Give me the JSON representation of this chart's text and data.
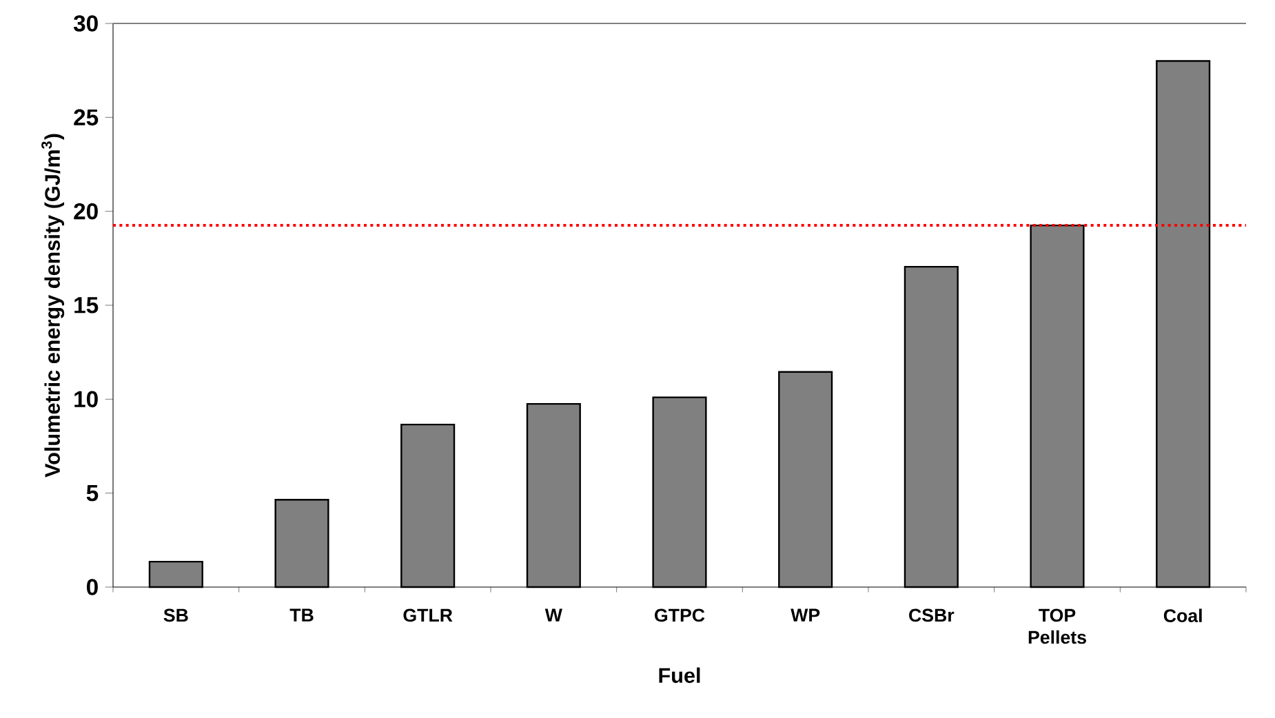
{
  "chart_data": {
    "type": "bar",
    "xlabel": "Fuel",
    "ylabel": "Volumetric energy density (GJ/m$^{3}$)",
    "categories": [
      "SB",
      "TB",
      "GTLR",
      "W",
      "GTPC",
      "WP",
      "CSBr",
      "TOP Pellets",
      "Coal"
    ],
    "values": [
      1.35,
      4.65,
      8.65,
      9.75,
      10.1,
      11.45,
      17.05,
      19.25,
      28.0
    ],
    "color": "#808080",
    "ylim": [
      0,
      30
    ],
    "yticks": [
      0,
      5,
      10,
      15,
      20,
      25,
      30
    ],
    "ref_lines": [
      {
        "axis": "y",
        "value": 19.25,
        "color": "#ff0000",
        "line_style": "dotted"
      }
    ]
  }
}
